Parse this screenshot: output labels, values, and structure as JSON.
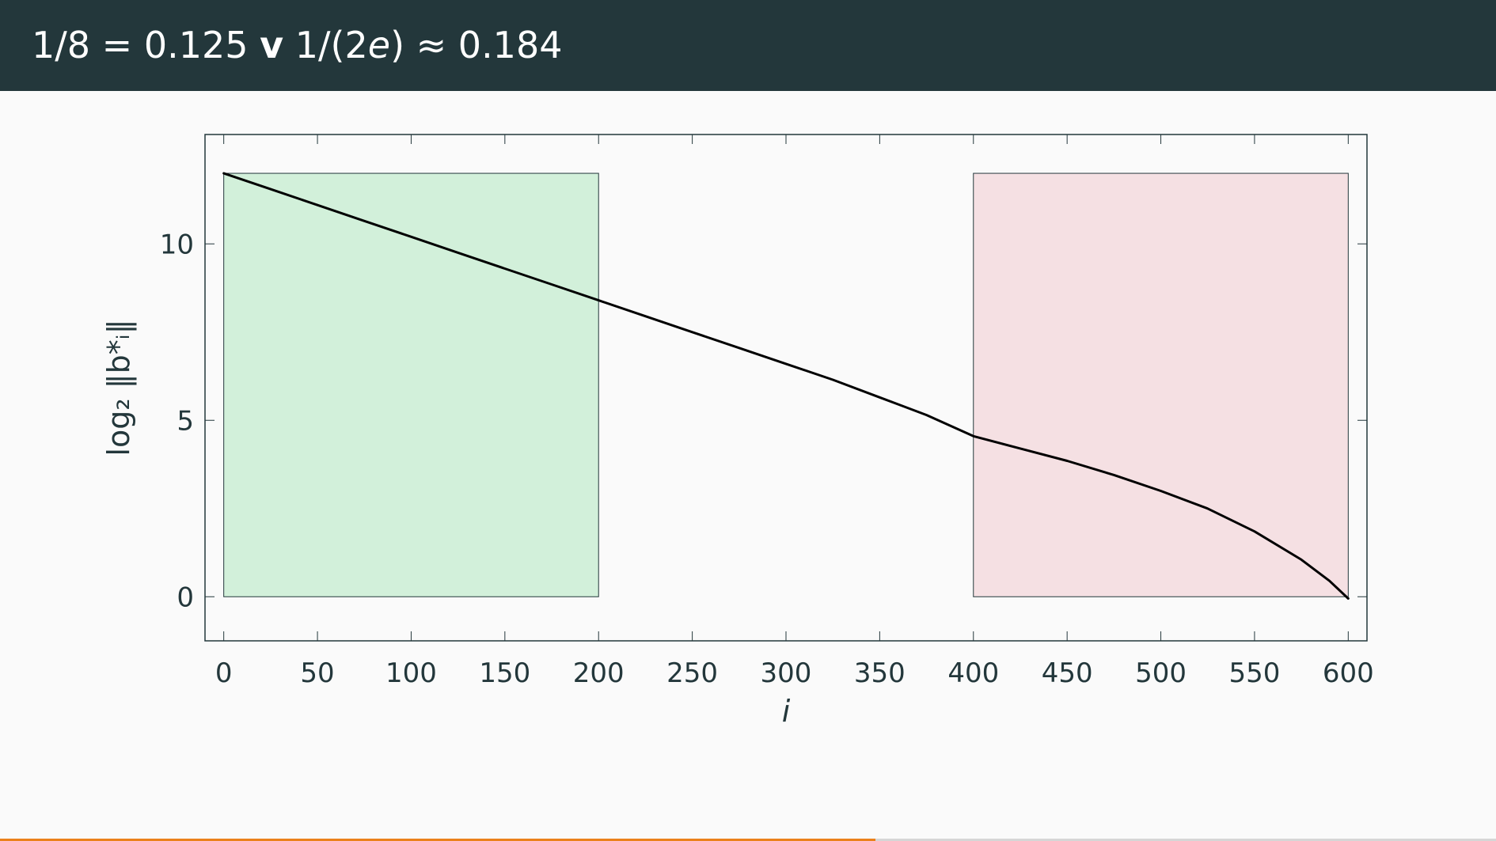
{
  "slide": {
    "title_parts": {
      "a": "1/8 = 0.125 ",
      "v": "v",
      "b": " 1/(2",
      "e": "e",
      "c": ") ≈ 0.184"
    },
    "progress": 0.585,
    "colors": {
      "header_bg": "#23373b",
      "background": "#fafafa",
      "progress": "#eb811b"
    }
  },
  "chart_data": {
    "type": "line",
    "xlabel": "i",
    "ylabel": "log₂ ‖b*ᵢ‖",
    "xlim": [
      -10,
      610
    ],
    "ylim": [
      -1.25,
      13.1
    ],
    "xticks": [
      0,
      50,
      100,
      150,
      200,
      250,
      300,
      350,
      400,
      450,
      500,
      550,
      600
    ],
    "yticks": [
      0,
      5,
      10
    ],
    "grid": false,
    "series": [
      {
        "line_color": "#000000",
        "x": [
          0,
          25,
          50,
          75,
          100,
          125,
          150,
          175,
          200,
          225,
          250,
          275,
          300,
          325,
          350,
          375,
          400,
          425,
          450,
          475,
          500,
          525,
          550,
          575,
          590,
          600
        ],
        "y": [
          12.0,
          11.55,
          11.1,
          10.65,
          10.2,
          9.75,
          9.3,
          8.85,
          8.4,
          7.95,
          7.5,
          7.05,
          6.6,
          6.15,
          5.65,
          5.15,
          4.55,
          4.2,
          3.85,
          3.45,
          3.0,
          2.5,
          1.85,
          1.05,
          0.45,
          -0.05
        ]
      }
    ],
    "regions": [
      {
        "x": [
          0,
          200
        ],
        "y": [
          0,
          12
        ],
        "fill": "#d2f0da",
        "stroke": "#23373b"
      },
      {
        "x": [
          400,
          600
        ],
        "y": [
          0,
          12
        ],
        "fill": "#f5e0e3",
        "stroke": "#23373b"
      }
    ]
  }
}
